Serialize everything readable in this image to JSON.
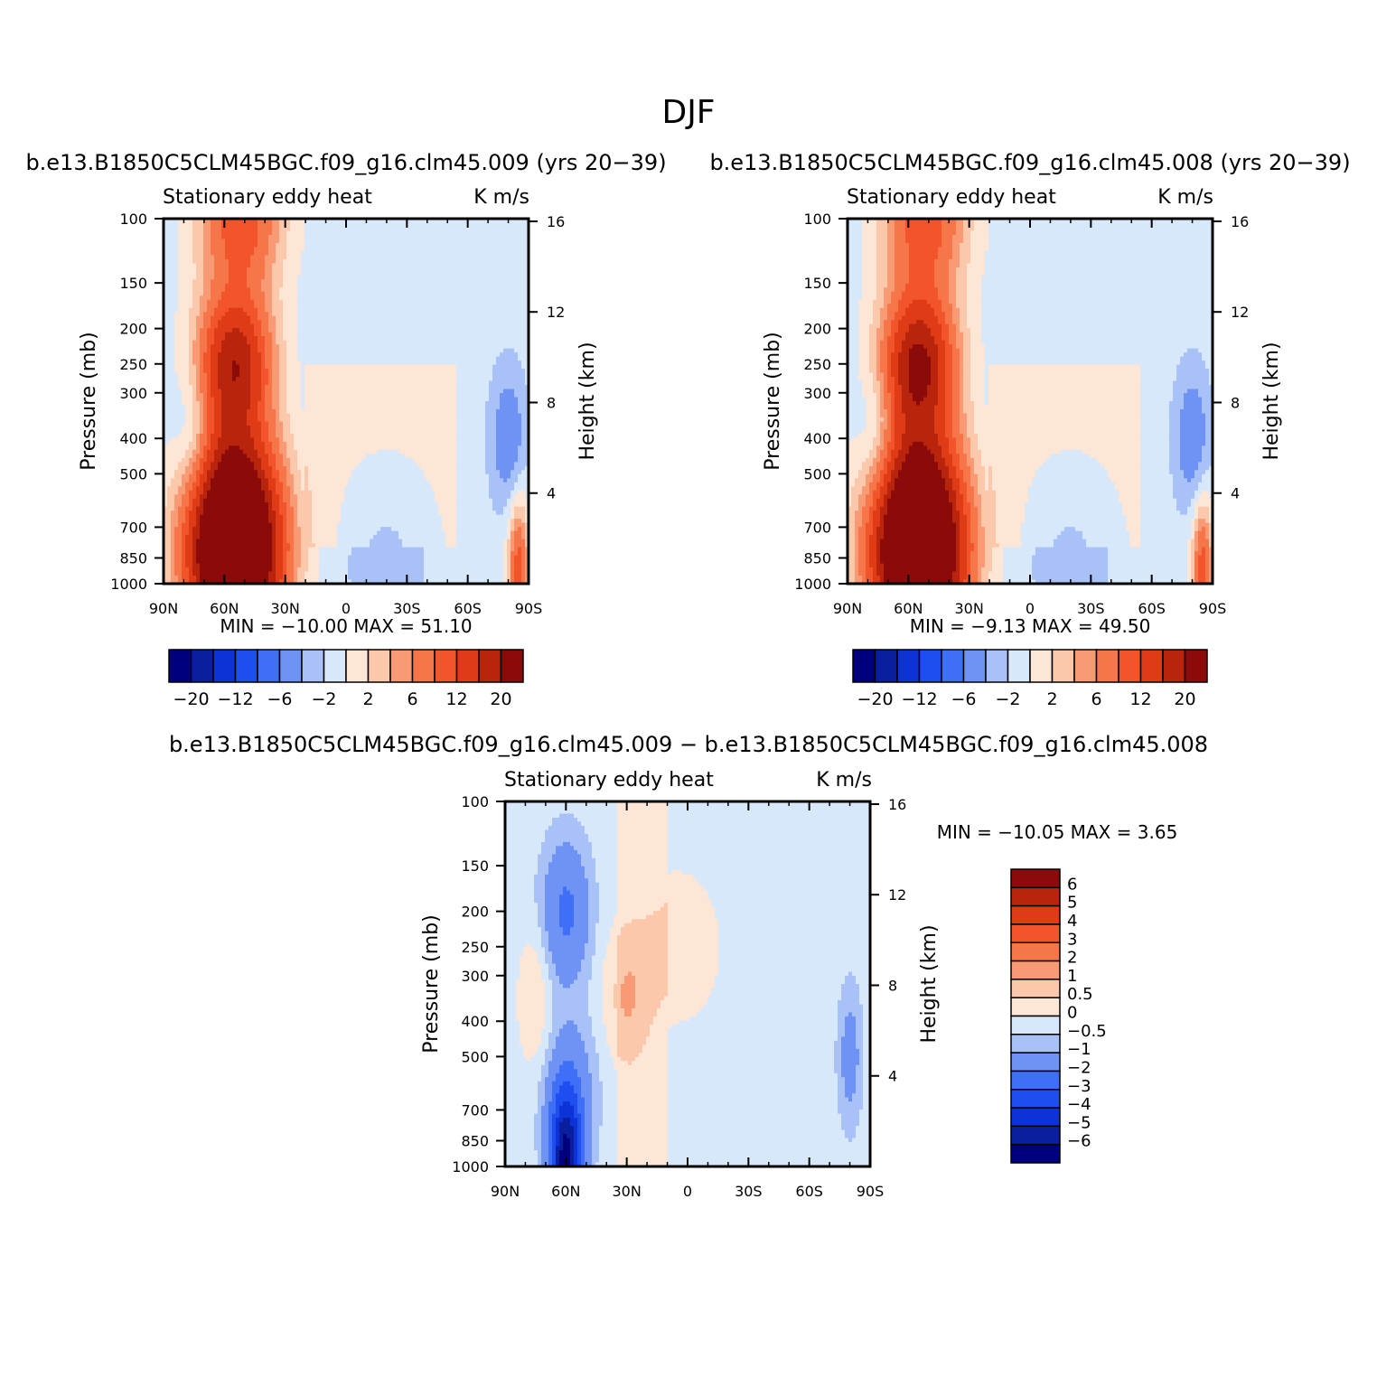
{
  "figure_title": "DJF",
  "chart_data": [
    {
      "type": "heatmap",
      "case": "b.e13.B1850C5CLM45BGC.f09_g16.clm45.009 (yrs 20−39)",
      "variable": "Stationary eddy heat",
      "units": "K m/s",
      "xlabel": "",
      "ylabel": "Pressure (mb)",
      "ylabel_right": "Height (km)",
      "x_ticks": [
        "90N",
        "60N",
        "30N",
        "0",
        "30S",
        "60S",
        "90S"
      ],
      "y_ticks": [
        "100",
        "150",
        "200",
        "250",
        "300",
        "400",
        "500",
        "700",
        "850",
        "1000"
      ],
      "y_right_ticks": [
        "16",
        "12",
        "8",
        "4"
      ],
      "ylim": [
        1000,
        100
      ],
      "y_scale": "log",
      "stats": "MIN =  −10.00   MAX =   51.10",
      "colorbar": {
        "orientation": "horizontal",
        "labels": [
          "−20",
          "−12",
          "−6",
          "−2",
          "2",
          "6",
          "12",
          "20"
        ],
        "colors": [
          "#00007f",
          "#0a1fa0",
          "#0d33d6",
          "#1f4ef0",
          "#3f6ff7",
          "#6e93f5",
          "#a8c2f8",
          "#d8e8fb",
          "#fde6d6",
          "#fbc8ac",
          "#f89a74",
          "#f6764a",
          "#f2542b",
          "#e03b17",
          "#b8240c",
          "#8b0a0a"
        ]
      },
      "features": [
        {
          "lat": 52,
          "p": 100,
          "value": 12,
          "width": 20
        },
        {
          "lat": 55,
          "p": 250,
          "value": 20,
          "width": 18
        },
        {
          "lat": 55,
          "p": 550,
          "value": 20,
          "width": 22
        },
        {
          "lat": 55,
          "p": 900,
          "value": 35,
          "width": 22
        },
        {
          "lat": 75,
          "p": 400,
          "value": -4,
          "width": 10
        },
        {
          "lat": -80,
          "p": 400,
          "value": -5,
          "width": 9
        },
        {
          "lat": -20,
          "p": 900,
          "value": -3,
          "width": 18
        },
        {
          "lat": -85,
          "p": 950,
          "value": 12,
          "width": 5
        }
      ]
    },
    {
      "type": "heatmap",
      "case": "b.e13.B1850C5CLM45BGC.f09_g16.clm45.008 (yrs 20−39)",
      "variable": "Stationary eddy heat",
      "units": "K m/s",
      "xlabel": "",
      "ylabel": "Pressure (mb)",
      "ylabel_right": "Height (km)",
      "x_ticks": [
        "90N",
        "60N",
        "30N",
        "0",
        "30S",
        "60S",
        "90S"
      ],
      "y_ticks": [
        "100",
        "150",
        "200",
        "250",
        "300",
        "400",
        "500",
        "700",
        "850",
        "1000"
      ],
      "y_right_ticks": [
        "16",
        "12",
        "8",
        "4"
      ],
      "ylim": [
        1000,
        100
      ],
      "y_scale": "log",
      "stats": "MIN =     −9.13   MAX =   49.50",
      "colorbar": {
        "orientation": "horizontal",
        "labels": [
          "−20",
          "−12",
          "−6",
          "−2",
          "2",
          "6",
          "12",
          "20"
        ],
        "colors": [
          "#00007f",
          "#0a1fa0",
          "#0d33d6",
          "#1f4ef0",
          "#3f6ff7",
          "#6e93f5",
          "#a8c2f8",
          "#d8e8fb",
          "#fde6d6",
          "#fbc8ac",
          "#f89a74",
          "#f6764a",
          "#f2542b",
          "#e03b17",
          "#b8240c",
          "#8b0a0a"
        ]
      },
      "features": [
        {
          "lat": 52,
          "p": 100,
          "value": 12,
          "width": 20
        },
        {
          "lat": 55,
          "p": 250,
          "value": 22,
          "width": 18
        },
        {
          "lat": 55,
          "p": 550,
          "value": 20,
          "width": 22
        },
        {
          "lat": 55,
          "p": 900,
          "value": 35,
          "width": 22
        },
        {
          "lat": 75,
          "p": 400,
          "value": -4,
          "width": 10
        },
        {
          "lat": -80,
          "p": 400,
          "value": -5,
          "width": 9
        },
        {
          "lat": -20,
          "p": 900,
          "value": -3,
          "width": 18
        },
        {
          "lat": -85,
          "p": 950,
          "value": 12,
          "width": 5
        }
      ]
    },
    {
      "type": "heatmap",
      "case": "b.e13.B1850C5CLM45BGC.f09_g16.clm45.009 − b.e13.B1850C5CLM45BGC.f09_g16.clm45.008",
      "variable": "Stationary eddy heat",
      "units": "K m/s",
      "xlabel": "",
      "ylabel": "Pressure (mb)",
      "ylabel_right": "Height (km)",
      "x_ticks": [
        "90N",
        "60N",
        "30N",
        "0",
        "30S",
        "60S",
        "90S"
      ],
      "y_ticks": [
        "100",
        "150",
        "200",
        "250",
        "300",
        "400",
        "500",
        "700",
        "850",
        "1000"
      ],
      "y_right_ticks": [
        "16",
        "12",
        "8",
        "4"
      ],
      "ylim": [
        1000,
        100
      ],
      "y_scale": "log",
      "stats": "MIN =  −10.05   MAX =     3.65",
      "colorbar": {
        "orientation": "vertical",
        "labels": [
          "6",
          "5",
          "4",
          "3",
          "2",
          "1",
          "0.5",
          "0",
          "−0.5",
          "−1",
          "−2",
          "−3",
          "−4",
          "−5",
          "−6"
        ],
        "colors": [
          "#8b0a0a",
          "#b8240c",
          "#e03b17",
          "#f2542b",
          "#f6764a",
          "#f89a74",
          "#fbc8ac",
          "#fde6d6",
          "#d8e8fb",
          "#a8c2f8",
          "#6e93f5",
          "#3f6ff7",
          "#1f4ef0",
          "#0d33d6",
          "#0a1fa0",
          "#00007f"
        ]
      },
      "features": [
        {
          "lat": 60,
          "p": 200,
          "value": -2,
          "width": 12
        },
        {
          "lat": 58,
          "p": 600,
          "value": -1.2,
          "width": 14
        },
        {
          "lat": 60,
          "p": 980,
          "value": -6,
          "width": 8
        },
        {
          "lat": 75,
          "p": 350,
          "value": 0.8,
          "width": 8
        },
        {
          "lat": 30,
          "p": 350,
          "value": 0.9,
          "width": 12
        },
        {
          "lat": 5,
          "p": 250,
          "value": 0.6,
          "width": 20
        },
        {
          "lat": -80,
          "p": 500,
          "value": -1.2,
          "width": 6
        }
      ]
    }
  ]
}
